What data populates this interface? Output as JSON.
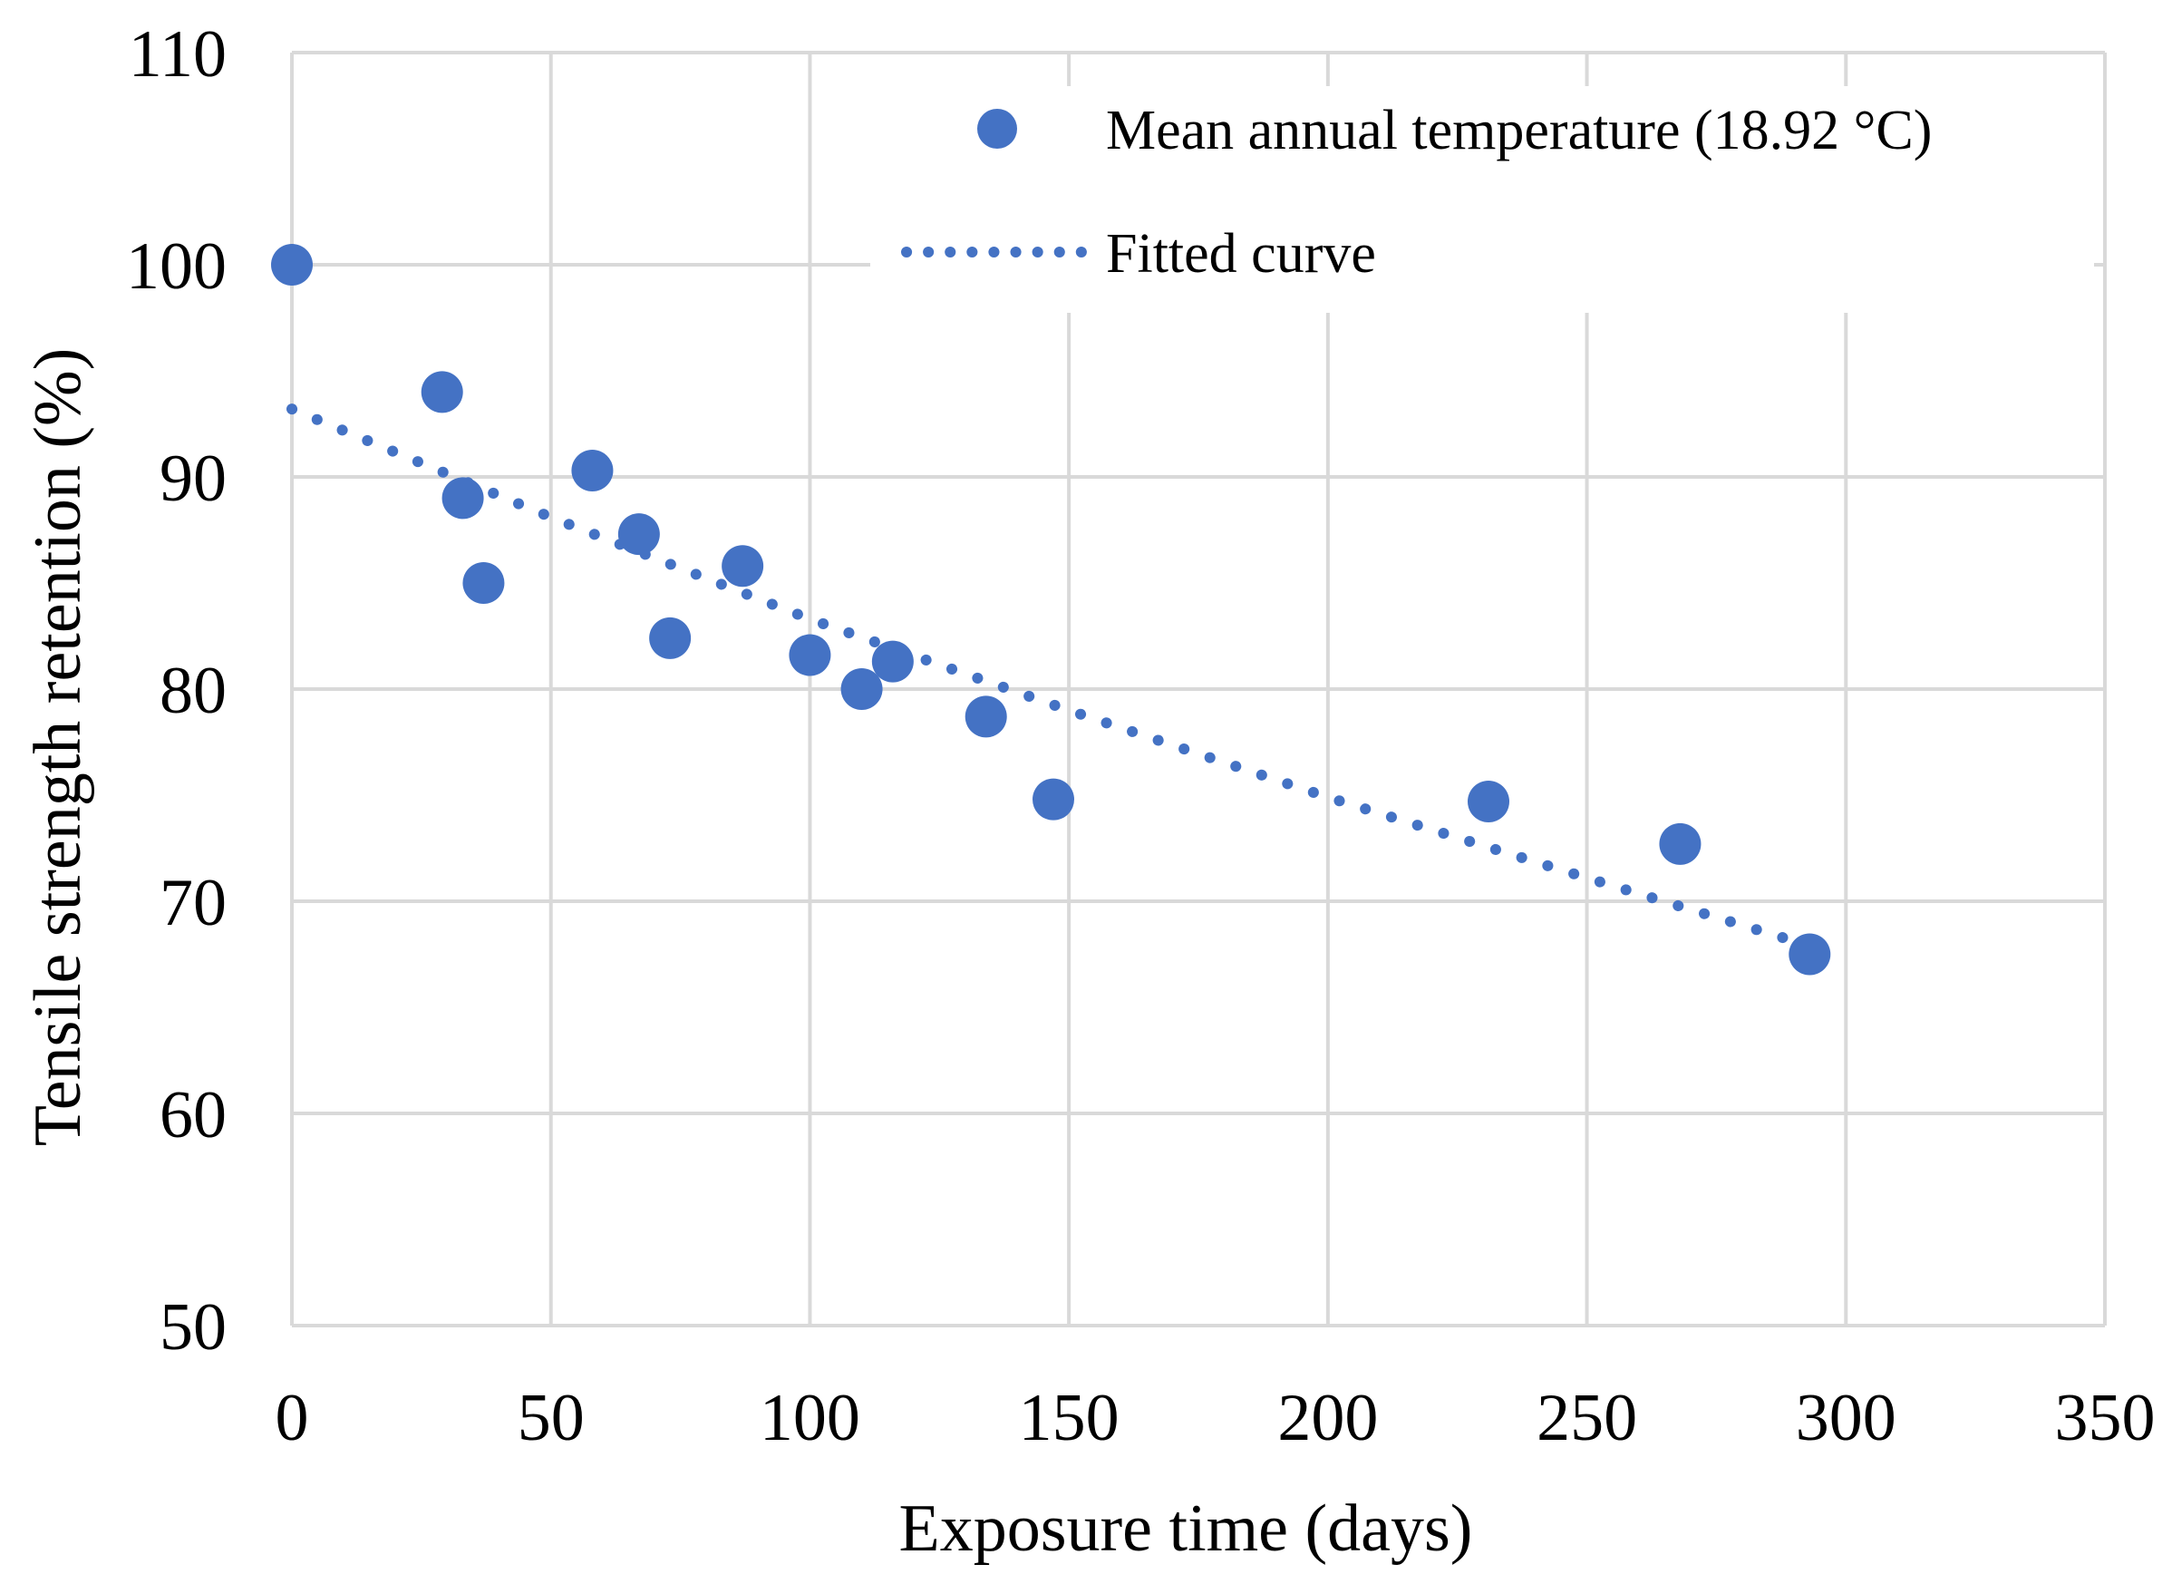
{
  "chart_data": {
    "type": "scatter",
    "title": "",
    "xlabel": "Exposure time (days)",
    "ylabel": "Tensile strength retention (%)",
    "xlim": [
      0,
      350
    ],
    "ylim": [
      50,
      110
    ],
    "xticks": [
      0,
      50,
      100,
      150,
      200,
      250,
      300,
      350
    ],
    "yticks": [
      50,
      60,
      70,
      80,
      90,
      100,
      110
    ],
    "grid": true,
    "legend_position": "top-right",
    "series": [
      {
        "name": "Mean annual temperature (18.92 °C)",
        "kind": "scatter",
        "color": "#4472C4",
        "x": [
          0,
          29,
          33,
          37,
          58,
          67,
          73,
          87,
          100,
          110,
          116,
          134,
          147,
          231,
          268,
          293
        ],
        "y": [
          100,
          94,
          89,
          85,
          90.3,
          87.3,
          82.4,
          85.8,
          81.6,
          80,
          81.3,
          78.7,
          74.8,
          74.7,
          72.7,
          67.5
        ]
      },
      {
        "name": "Fitted curve",
        "kind": "dotted-line",
        "color": "#4472C4",
        "x": [
          0,
          50,
          100,
          150,
          200,
          250,
          293
        ],
        "y": [
          93.2,
          88.1,
          83.3,
          79,
          74.9,
          71.1,
          67.9
        ]
      }
    ]
  }
}
